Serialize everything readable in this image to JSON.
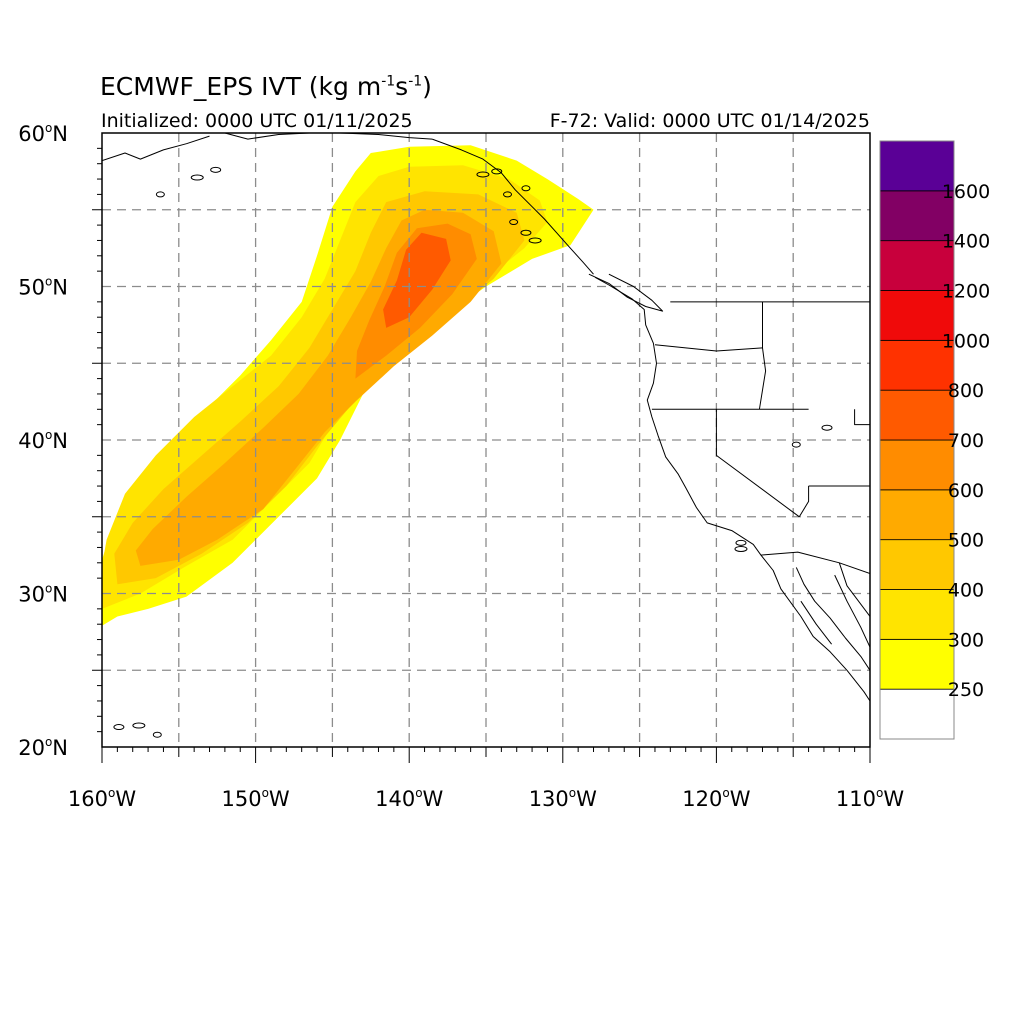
{
  "title": {
    "main": "ECMWF_EPS IVT (kg m",
    "exp1": "-1",
    "mid": "s",
    "exp2": "-1",
    "end": ")"
  },
  "initialized": "Initialized: 0000 UTC 01/11/2025",
  "valid": "F-72: Valid: 0000 UTC 01/14/2025",
  "lat_labels": [
    {
      "value": 60,
      "text": "60",
      "suffix": "N"
    },
    {
      "value": 50,
      "text": "50",
      "suffix": "N"
    },
    {
      "value": 40,
      "text": "40",
      "suffix": "N"
    },
    {
      "value": 30,
      "text": "30",
      "suffix": "N"
    },
    {
      "value": 20,
      "text": "20",
      "suffix": "N"
    }
  ],
  "lon_labels": [
    {
      "value": -160,
      "text": "160",
      "suffix": "W"
    },
    {
      "value": -150,
      "text": "150",
      "suffix": "W"
    },
    {
      "value": -140,
      "text": "140",
      "suffix": "W"
    },
    {
      "value": -130,
      "text": "130",
      "suffix": "W"
    },
    {
      "value": -120,
      "text": "120",
      "suffix": "W"
    },
    {
      "value": -110,
      "text": "110",
      "suffix": "W"
    }
  ],
  "map_extent": {
    "lon": [
      -160,
      -110
    ],
    "lat": [
      20,
      60
    ]
  },
  "colorbar": {
    "levels": [
      {
        "label": "",
        "color": "#ffffff"
      },
      {
        "label": "250",
        "color": "#ffff00"
      },
      {
        "label": "300",
        "color": "#ffe400"
      },
      {
        "label": "400",
        "color": "#ffc800"
      },
      {
        "label": "500",
        "color": "#ffaa00"
      },
      {
        "label": "600",
        "color": "#ff8c00"
      },
      {
        "label": "700",
        "color": "#ff5a00"
      },
      {
        "label": "800",
        "color": "#ff3200"
      },
      {
        "label": "1000",
        "color": "#f00a0a"
      },
      {
        "label": "1200",
        "color": "#c8003c"
      },
      {
        "label": "1400",
        "color": "#820064"
      },
      {
        "label": "1600",
        "color": "#5a0096"
      }
    ]
  },
  "ivt_plume": [
    {
      "label": "250",
      "color": "#ffff00",
      "points": [
        [
          -160,
          27.9
        ],
        [
          -159,
          28.5
        ],
        [
          -157,
          29
        ],
        [
          -154.5,
          29.8
        ],
        [
          -151.5,
          32
        ],
        [
          -148.5,
          35
        ],
        [
          -146,
          37.5
        ],
        [
          -144.5,
          40
        ],
        [
          -143,
          43
        ],
        [
          -141.5,
          45.5
        ],
        [
          -138.5,
          47.5
        ],
        [
          -135,
          50
        ],
        [
          -132,
          51.8
        ],
        [
          -129.5,
          52.7
        ],
        [
          -128,
          55
        ],
        [
          -129,
          55.7
        ],
        [
          -131,
          57
        ],
        [
          -133,
          58.2
        ],
        [
          -136,
          59.2
        ],
        [
          -140,
          59.1
        ],
        [
          -142.5,
          58.7
        ],
        [
          -143.5,
          57.5
        ],
        [
          -145,
          55.2
        ],
        [
          -146,
          52
        ],
        [
          -147,
          49
        ],
        [
          -149,
          46.5
        ],
        [
          -151,
          44.2
        ],
        [
          -153,
          42.2
        ],
        [
          -155,
          40
        ],
        [
          -157,
          37.6
        ],
        [
          -158.5,
          35.5
        ],
        [
          -159.5,
          33.8
        ],
        [
          -160,
          32.2
        ]
      ]
    },
    {
      "label": "300",
      "color": "#ffe400",
      "points": [
        [
          -160,
          29
        ],
        [
          -157.5,
          30
        ],
        [
          -154.5,
          31.8
        ],
        [
          -151.5,
          33.5
        ],
        [
          -149,
          36
        ],
        [
          -146.5,
          38.5
        ],
        [
          -145,
          41
        ],
        [
          -143.5,
          43.5
        ],
        [
          -141.5,
          45.8
        ],
        [
          -138.5,
          48
        ],
        [
          -135,
          50.5
        ],
        [
          -132.5,
          52.5
        ],
        [
          -131,
          54.2
        ],
        [
          -131.5,
          55.6
        ],
        [
          -133.5,
          57
        ],
        [
          -136.5,
          57.9
        ],
        [
          -140,
          57.8
        ],
        [
          -142,
          57.2
        ],
        [
          -143.5,
          55.5
        ],
        [
          -144.5,
          53
        ],
        [
          -145.5,
          50.5
        ],
        [
          -147,
          48
        ],
        [
          -149,
          45.5
        ],
        [
          -151.5,
          43.5
        ],
        [
          -154,
          41.5
        ],
        [
          -156.5,
          39
        ],
        [
          -158.5,
          36.5
        ],
        [
          -159.7,
          33.5
        ],
        [
          -160,
          31.8
        ]
      ]
    },
    {
      "label": "400",
      "color": "#ffc800",
      "points": [
        [
          -159,
          30.6
        ],
        [
          -156.5,
          31
        ],
        [
          -153.5,
          32.6
        ],
        [
          -150.5,
          34.6
        ],
        [
          -148,
          37
        ],
        [
          -146,
          39.6
        ],
        [
          -144,
          42
        ],
        [
          -142.5,
          44
        ],
        [
          -140,
          46.3
        ],
        [
          -137.5,
          48
        ],
        [
          -134.5,
          50.5
        ],
        [
          -132.5,
          53
        ],
        [
          -133,
          54.8
        ],
        [
          -135.5,
          56
        ],
        [
          -139,
          56.2
        ],
        [
          -141.5,
          55.5
        ],
        [
          -142.5,
          53.5
        ],
        [
          -143.5,
          51
        ],
        [
          -145,
          48.5
        ],
        [
          -146.5,
          46
        ],
        [
          -148.5,
          43.5
        ],
        [
          -151,
          41.2
        ],
        [
          -153.5,
          39
        ],
        [
          -156,
          36.8
        ],
        [
          -158,
          34.6
        ],
        [
          -159.2,
          32.6
        ]
      ]
    },
    {
      "label": "500",
      "color": "#ffaa00",
      "points": [
        [
          -157.5,
          31.8
        ],
        [
          -155,
          32.2
        ],
        [
          -152.5,
          33.5
        ],
        [
          -149.5,
          35.5
        ],
        [
          -147.5,
          38
        ],
        [
          -145.5,
          40.5
        ],
        [
          -143.5,
          42.5
        ],
        [
          -141,
          44.8
        ],
        [
          -138.5,
          46.8
        ],
        [
          -136,
          49
        ],
        [
          -134,
          51.5
        ],
        [
          -134.5,
          53.6
        ],
        [
          -136.5,
          54.8
        ],
        [
          -139,
          55
        ],
        [
          -140.5,
          54.3
        ],
        [
          -141.5,
          52.5
        ],
        [
          -142.5,
          50.3
        ],
        [
          -143.8,
          48
        ],
        [
          -145.3,
          45.5
        ],
        [
          -147.2,
          43
        ],
        [
          -149.5,
          40.8
        ],
        [
          -152,
          38.5
        ],
        [
          -154.5,
          36.3
        ],
        [
          -156.7,
          34.2
        ],
        [
          -157.8,
          32.8
        ]
      ]
    },
    {
      "label": "600",
      "color": "#ff8c00",
      "points": [
        [
          -143.5,
          44
        ],
        [
          -141.5,
          45.5
        ],
        [
          -139.3,
          47.3
        ],
        [
          -137.2,
          49.5
        ],
        [
          -135.6,
          51.8
        ],
        [
          -136,
          53.4
        ],
        [
          -137.5,
          54.1
        ],
        [
          -139.5,
          53.8
        ],
        [
          -140.8,
          52.2
        ],
        [
          -141.6,
          50
        ],
        [
          -142.6,
          47.8
        ],
        [
          -143.4,
          45.8
        ]
      ]
    },
    {
      "label": "700",
      "color": "#ff5a00",
      "points": [
        [
          -141.5,
          47.3
        ],
        [
          -140,
          48
        ],
        [
          -138.5,
          49.8
        ],
        [
          -137.3,
          51.7
        ],
        [
          -137.6,
          53.1
        ],
        [
          -139.2,
          53.5
        ],
        [
          -140.2,
          52.4
        ],
        [
          -140.8,
          50.4
        ],
        [
          -141.7,
          48.5
        ]
      ]
    }
  ]
}
